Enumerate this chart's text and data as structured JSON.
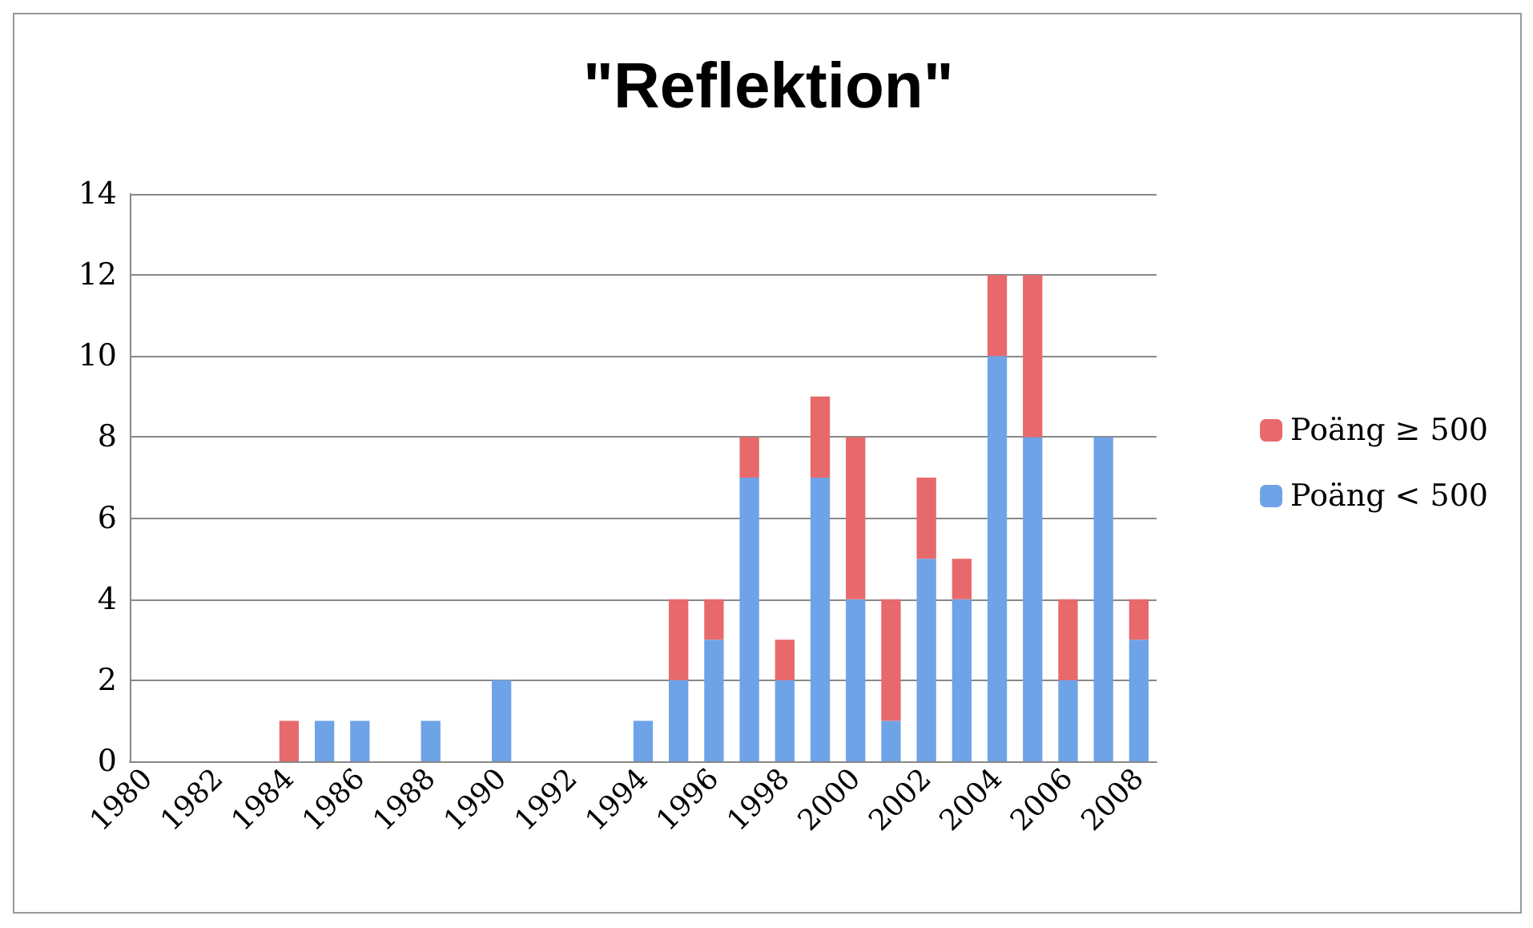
{
  "chart_data": {
    "type": "bar",
    "title": "\"Reflektion\"",
    "stacked": true,
    "grid": "y",
    "legend": "right",
    "categories": [
      "1980",
      null,
      "1982",
      null,
      "1984",
      null,
      "1986",
      null,
      "1988",
      null,
      "1990",
      null,
      "1992",
      null,
      "1994",
      null,
      "1996",
      null,
      "1998",
      null,
      "2000",
      null,
      "2002",
      null,
      "2004",
      null,
      "2006",
      null,
      "2008"
    ],
    "ylim": [
      0,
      14
    ],
    "yticks": [
      0,
      2,
      4,
      6,
      8,
      10,
      12,
      14
    ],
    "series": [
      {
        "name": "Poäng < 500",
        "color": "#6fa3e8",
        "values": [
          0,
          0,
          0,
          0,
          0,
          1,
          1,
          0,
          1,
          0,
          2,
          0,
          0,
          0,
          1,
          2,
          3,
          7,
          2,
          7,
          4,
          1,
          5,
          4,
          10,
          8,
          2,
          8,
          3
        ]
      },
      {
        "name": "Poäng ≥ 500",
        "color": "#e8696b",
        "values": [
          0,
          0,
          0,
          0,
          1,
          0,
          0,
          0,
          0,
          0,
          0,
          0,
          0,
          0,
          0,
          2,
          1,
          1,
          1,
          2,
          4,
          3,
          2,
          1,
          2,
          4,
          2,
          0,
          1
        ]
      }
    ]
  }
}
